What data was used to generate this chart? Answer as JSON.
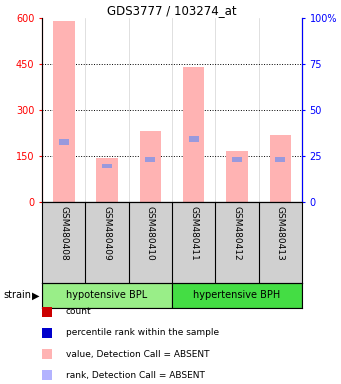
{
  "title": "GDS3777 / 103274_at",
  "samples": [
    "GSM480408",
    "GSM480409",
    "GSM480410",
    "GSM480411",
    "GSM480412",
    "GSM480413"
  ],
  "groups": [
    {
      "name": "hypotensive BPL",
      "color": "#90ee90",
      "samples": [
        0,
        1,
        2
      ]
    },
    {
      "name": "hypertensive BPH",
      "color": "#33cc33",
      "samples": [
        3,
        4,
        5
      ]
    }
  ],
  "values_absent": [
    590,
    143,
    230,
    440,
    165,
    220
  ],
  "rank_segment_bottom": [
    185,
    110,
    130,
    195,
    130,
    130
  ],
  "rank_segment_top": [
    205,
    125,
    148,
    215,
    148,
    148
  ],
  "ylim_left": [
    0,
    600
  ],
  "ylim_right": [
    0,
    100
  ],
  "yticks_left": [
    0,
    150,
    300,
    450,
    600
  ],
  "yticks_right": [
    0,
    25,
    50,
    75,
    100
  ],
  "ytick_labels_right": [
    "0",
    "25",
    "50",
    "75",
    "100%"
  ],
  "bar_color_absent": "#ffb3b3",
  "rank_color_absent": "#9999dd",
  "bg_color": "#d0d0d0",
  "group_color_1": "#99ee88",
  "group_color_2": "#44dd44",
  "legend_items": [
    {
      "color": "#cc0000",
      "label": "count"
    },
    {
      "color": "#0000cc",
      "label": "percentile rank within the sample"
    },
    {
      "color": "#ffb3b3",
      "label": "value, Detection Call = ABSENT"
    },
    {
      "color": "#b3b3ff",
      "label": "rank, Detection Call = ABSENT"
    }
  ],
  "bar_width": 0.5,
  "strain_label": "strain"
}
